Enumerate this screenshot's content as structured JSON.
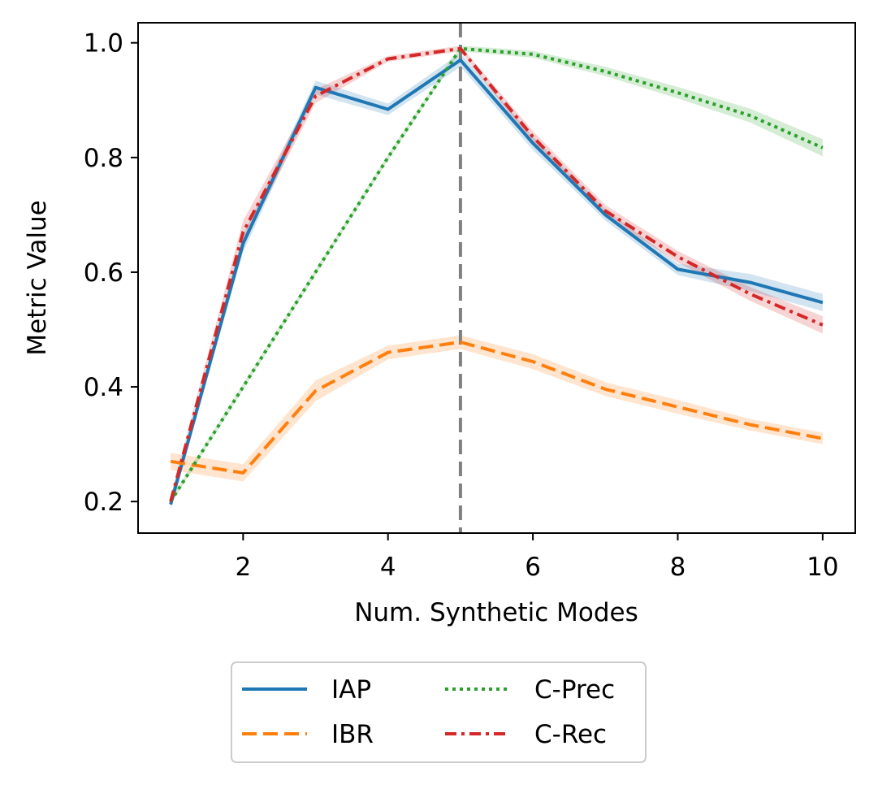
{
  "chart_data": {
    "type": "line",
    "title": "",
    "xlabel": "Num. Synthetic Modes",
    "ylabel": "Metric Value",
    "xlim": [
      0.55,
      10.45
    ],
    "ylim": [
      0.145,
      1.035
    ],
    "xticks": [
      2,
      4,
      6,
      8,
      10
    ],
    "yticks": [
      0.2,
      0.4,
      0.6,
      0.8,
      1.0
    ],
    "xtick_labels": [
      "2",
      "4",
      "6",
      "8",
      "10"
    ],
    "ytick_labels": [
      "0.2",
      "0.4",
      "0.6",
      "0.8",
      "1.0"
    ],
    "vline": {
      "x": 5,
      "color": "#808080",
      "style": "dashed"
    },
    "legend": {
      "placement": "below",
      "columns": 2
    },
    "x": [
      1,
      2,
      3,
      4,
      5,
      6,
      7,
      8,
      9,
      10
    ],
    "series": [
      {
        "name": "IAP",
        "color": "#1f77b4",
        "style": "solid",
        "values": [
          0.195,
          0.65,
          0.922,
          0.884,
          0.97,
          0.825,
          0.7,
          0.605,
          0.582,
          0.547
        ],
        "band": [
          0.008,
          0.015,
          0.012,
          0.01,
          0.012,
          0.012,
          0.01,
          0.01,
          0.015,
          0.015
        ]
      },
      {
        "name": "IBR",
        "color": "#ff7f0e",
        "style": "dashed",
        "values": [
          0.27,
          0.25,
          0.393,
          0.46,
          0.478,
          0.444,
          0.396,
          0.365,
          0.334,
          0.31
        ],
        "band": [
          0.015,
          0.015,
          0.018,
          0.012,
          0.012,
          0.013,
          0.012,
          0.012,
          0.01,
          0.01
        ]
      },
      {
        "name": "C-Prec",
        "color": "#2ca02c",
        "style": "dotted",
        "values": [
          0.2,
          0.4,
          0.6,
          0.8,
          0.99,
          0.98,
          0.95,
          0.913,
          0.873,
          0.817
        ],
        "band": [
          0.005,
          0.005,
          0.005,
          0.005,
          0.005,
          0.006,
          0.008,
          0.01,
          0.012,
          0.015
        ]
      },
      {
        "name": "C-Rec",
        "color": "#d62728",
        "style": "dashdot",
        "values": [
          0.2,
          0.67,
          0.907,
          0.972,
          0.99,
          0.836,
          0.707,
          0.627,
          0.562,
          0.508
        ],
        "band": [
          0.01,
          0.02,
          0.012,
          0.005,
          0.005,
          0.01,
          0.01,
          0.01,
          0.012,
          0.015
        ]
      }
    ]
  }
}
